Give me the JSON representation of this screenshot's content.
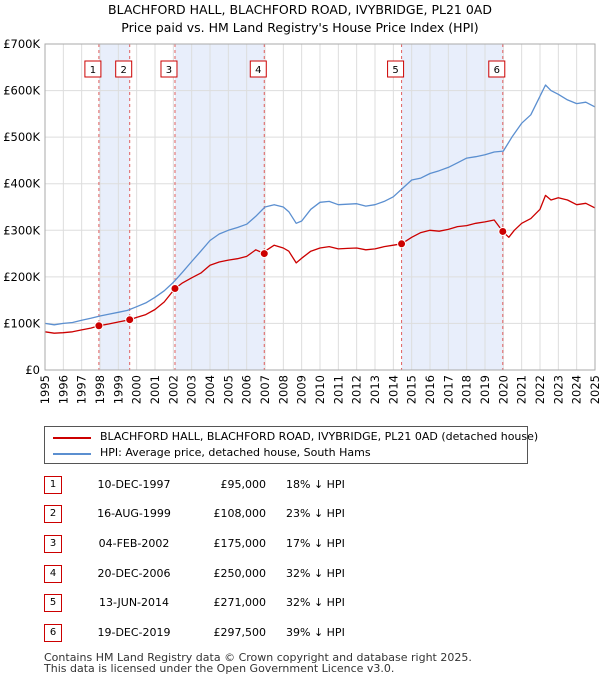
{
  "chart_data": {
    "type": "line",
    "title": "BLACHFORD HALL, BLACHFORD ROAD, IVYBRIDGE, PL21 0AD",
    "subtitle": "Price paid vs. HM Land Registry's House Price Index (HPI)",
    "xlabel": "",
    "ylabel": "",
    "xlim": [
      1995,
      2025
    ],
    "ylim": [
      0,
      700000
    ],
    "x_ticks": [
      "1995",
      "1996",
      "1997",
      "1998",
      "1999",
      "2000",
      "2001",
      "2002",
      "2003",
      "2004",
      "2005",
      "2006",
      "2007",
      "2008",
      "2009",
      "2010",
      "2011",
      "2012",
      "2013",
      "2014",
      "2015",
      "2016",
      "2017",
      "2018",
      "2019",
      "2020",
      "2021",
      "2022",
      "2023",
      "2024",
      "2025"
    ],
    "y_ticks": [
      {
        "value": 0,
        "label": "£0"
      },
      {
        "value": 100000,
        "label": "£100K"
      },
      {
        "value": 200000,
        "label": "£200K"
      },
      {
        "value": 300000,
        "label": "£300K"
      },
      {
        "value": 400000,
        "label": "£400K"
      },
      {
        "value": 500000,
        "label": "£500K"
      },
      {
        "value": 600000,
        "label": "£600K"
      },
      {
        "value": 700000,
        "label": "£700K"
      }
    ],
    "grid": true,
    "series": [
      {
        "name": "HPI: Average price, detached house, South Hams",
        "color": "#5b8fd0",
        "x": [
          1995,
          1995.5,
          1996,
          1996.5,
          1997,
          1997.5,
          1998,
          1998.5,
          1999,
          1999.5,
          2000,
          2000.5,
          2001,
          2001.5,
          2002,
          2002.5,
          2003,
          2003.5,
          2004,
          2004.5,
          2005,
          2005.5,
          2006,
          2006.5,
          2007,
          2007.5,
          2008,
          2008.3,
          2008.7,
          2009,
          2009.5,
          2010,
          2010.5,
          2011,
          2011.5,
          2012,
          2012.5,
          2013,
          2013.5,
          2014,
          2014.5,
          2015,
          2015.5,
          2016,
          2016.5,
          2017,
          2017.5,
          2018,
          2018.5,
          2019,
          2019.5,
          2020,
          2020.5,
          2021,
          2021.5,
          2022,
          2022.3,
          2022.6,
          2023,
          2023.5,
          2024,
          2024.5,
          2025
        ],
        "values": [
          100000,
          97000,
          100000,
          102000,
          107000,
          111000,
          116000,
          120000,
          124000,
          128000,
          136000,
          144000,
          156000,
          170000,
          188000,
          210000,
          233000,
          255000,
          278000,
          292000,
          300000,
          306000,
          313000,
          330000,
          350000,
          355000,
          350000,
          340000,
          315000,
          320000,
          345000,
          360000,
          362000,
          355000,
          356000,
          357000,
          352000,
          355000,
          362000,
          372000,
          390000,
          408000,
          412000,
          422000,
          428000,
          435000,
          445000,
          455000,
          458000,
          462000,
          468000,
          470000,
          502000,
          530000,
          548000,
          588000,
          612000,
          600000,
          592000,
          580000,
          572000,
          575000,
          565000
        ]
      },
      {
        "name": "BLACHFORD HALL, BLACHFORD ROAD, IVYBRIDGE, PL21 0AD (detached house)",
        "color": "#cc0000",
        "x": [
          1995,
          1995.5,
          1996,
          1996.5,
          1997,
          1997.5,
          1997.94,
          1998.5,
          1999,
          1999.62,
          2000,
          2000.5,
          2001,
          2001.5,
          2002.09,
          2002.5,
          2003,
          2003.5,
          2004,
          2004.5,
          2005,
          2005.5,
          2006,
          2006.5,
          2006.96,
          2007,
          2007.5,
          2008,
          2008.3,
          2008.7,
          2009,
          2009.5,
          2010,
          2010.5,
          2011,
          2011.5,
          2012,
          2012.5,
          2013,
          2013.5,
          2014.0,
          2014.45,
          2015,
          2015.5,
          2016,
          2016.5,
          2017,
          2017.5,
          2018,
          2018.5,
          2019,
          2019.5,
          2019.97,
          2020.3,
          2020.6,
          2021,
          2021.5,
          2022,
          2022.3,
          2022.6,
          2023,
          2023.5,
          2024,
          2024.5,
          2025
        ],
        "values": [
          82000,
          79000,
          80000,
          82000,
          86000,
          90000,
          95000,
          99000,
          103000,
          108000,
          113000,
          119000,
          130000,
          146000,
          175000,
          187000,
          198000,
          208000,
          225000,
          232000,
          236000,
          239000,
          244000,
          258000,
          250000,
          255000,
          268000,
          262000,
          255000,
          230000,
          240000,
          255000,
          262000,
          265000,
          260000,
          261000,
          262000,
          258000,
          260000,
          265000,
          268000,
          271000,
          285000,
          295000,
          300000,
          298000,
          302000,
          308000,
          310000,
          315000,
          318000,
          322000,
          297500,
          285000,
          300000,
          315000,
          325000,
          345000,
          375000,
          365000,
          370000,
          365000,
          355000,
          358000,
          348000
        ]
      }
    ],
    "sales": [
      {
        "num": "1",
        "x": 1997.94,
        "price": 95000
      },
      {
        "num": "2",
        "x": 1999.62,
        "price": 108000
      },
      {
        "num": "3",
        "x": 2002.09,
        "price": 175000
      },
      {
        "num": "4",
        "x": 2006.96,
        "price": 250000
      },
      {
        "num": "5",
        "x": 2014.45,
        "price": 271000
      },
      {
        "num": "6",
        "x": 2019.97,
        "price": 297500
      }
    ],
    "shaded_periods": [
      [
        1997.94,
        1999.62
      ],
      [
        2002.09,
        2006.96
      ],
      [
        2014.45,
        2019.97
      ]
    ]
  },
  "legend": {
    "property_label": "BLACHFORD HALL, BLACHFORD ROAD, IVYBRIDGE, PL21 0AD (detached house)",
    "hpi_label": "HPI: Average price, detached house, South Hams",
    "property_color": "#cc0000",
    "hpi_color": "#5b8fd0"
  },
  "transactions": [
    {
      "num": "1",
      "date": "10-DEC-1997",
      "price": "£95,000",
      "hpi": "18% ↓ HPI"
    },
    {
      "num": "2",
      "date": "16-AUG-1999",
      "price": "£108,000",
      "hpi": "23% ↓ HPI"
    },
    {
      "num": "3",
      "date": "04-FEB-2002",
      "price": "£175,000",
      "hpi": "17% ↓ HPI"
    },
    {
      "num": "4",
      "date": "20-DEC-2006",
      "price": "£250,000",
      "hpi": "32% ↓ HPI"
    },
    {
      "num": "5",
      "date": "13-JUN-2014",
      "price": "£271,000",
      "hpi": "32% ↓ HPI"
    },
    {
      "num": "6",
      "date": "19-DEC-2019",
      "price": "£297,500",
      "hpi": "39% ↓ HPI"
    }
  ],
  "footer": {
    "line1": "Contains HM Land Registry data © Crown copyright and database right 2025.",
    "line2": "This data is licensed under the Open Government Licence v3.0."
  }
}
